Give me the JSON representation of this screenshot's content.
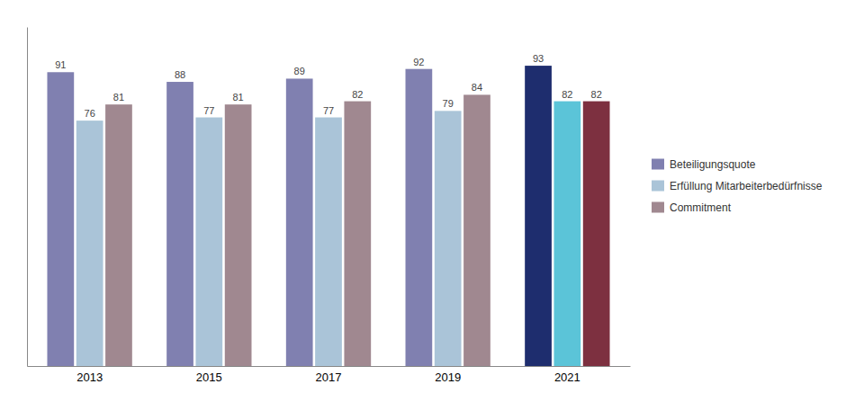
{
  "chart_data": {
    "type": "bar",
    "categories": [
      "2013",
      "2015",
      "2017",
      "2019",
      "2021"
    ],
    "series": [
      {
        "name": "Beteiligungsquote",
        "values": [
          91,
          88,
          89,
          92,
          93
        ],
        "colors": [
          "#8080b0",
          "#8080b0",
          "#8080b0",
          "#8080b0",
          "#1e2d6e"
        ]
      },
      {
        "name": "Erfüllung Mitarbeiterbedürfnisse",
        "values": [
          76,
          77,
          77,
          79,
          82
        ],
        "colors": [
          "#aac4d8",
          "#aac4d8",
          "#aac4d8",
          "#aac4d8",
          "#5bc4d8"
        ]
      },
      {
        "name": "Commitment",
        "values": [
          81,
          81,
          82,
          84,
          82
        ],
        "colors": [
          "#a08890",
          "#a08890",
          "#a08890",
          "#a08890",
          "#7d3040"
        ]
      }
    ],
    "ylim": [
      0,
      105
    ],
    "data_labels": true,
    "tick_labels": "x",
    "legend": "right"
  }
}
